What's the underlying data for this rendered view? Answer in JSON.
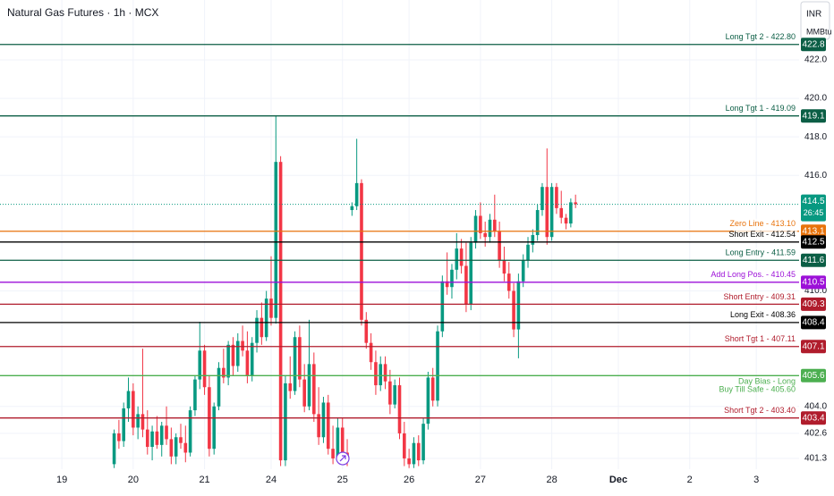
{
  "chart_data": {
    "type": "candlestick",
    "title": "Natural Gas Futures · 1h · MCX",
    "currency": "INR",
    "unit": "MMBtu",
    "up_color": "#089981",
    "down_color": "#f23645",
    "xlim": [
      0,
      168
    ],
    "ylim": [
      400.74,
      425.11
    ],
    "xticks": [
      {
        "value": 13,
        "label": "19"
      },
      {
        "value": 28,
        "label": "20"
      },
      {
        "value": 43,
        "label": "21"
      },
      {
        "value": 57,
        "label": "24"
      },
      {
        "value": 72,
        "label": "25"
      },
      {
        "value": 86,
        "label": "26"
      },
      {
        "value": 101,
        "label": "27"
      },
      {
        "value": 116,
        "label": "28"
      },
      {
        "value": 130,
        "label": "Dec"
      },
      {
        "value": 145,
        "label": "2"
      },
      {
        "value": 159,
        "label": "3"
      }
    ],
    "yticks": [
      {
        "value": 422,
        "label": "422.0"
      },
      {
        "value": 420,
        "label": "420.0"
      },
      {
        "value": 418,
        "label": "418.0"
      },
      {
        "value": 416,
        "label": "416.0"
      },
      {
        "value": 410,
        "label": "410.0"
      },
      {
        "value": 404,
        "label": "404.0"
      },
      402.6,
      401.3
    ],
    "grid": true,
    "x": [
      24,
      25,
      26,
      27,
      28,
      29,
      30,
      31,
      32,
      33,
      34,
      35,
      36,
      37,
      38,
      39,
      40,
      41,
      42,
      43,
      44,
      45,
      46,
      47,
      48,
      49,
      50,
      51,
      52,
      53,
      54,
      55,
      56,
      57,
      58,
      59,
      60,
      61,
      62,
      63,
      64,
      65,
      66,
      67,
      68,
      69,
      70,
      71,
      72,
      73,
      74,
      75,
      76,
      77,
      78,
      79,
      80,
      81,
      82,
      83,
      84,
      85,
      86,
      87,
      88,
      89,
      90,
      91,
      92,
      93,
      94,
      95,
      96,
      97,
      98,
      99,
      100,
      101,
      102,
      103,
      104,
      105,
      106,
      107,
      108,
      109,
      110,
      111,
      112,
      113,
      114,
      115,
      116,
      117,
      118,
      119,
      120,
      121
    ],
    "open": [
      401.0,
      402.6,
      402.2,
      403.9,
      404.8,
      402.9,
      403.6,
      402.8,
      401.9,
      402.7,
      402.0,
      403.0,
      402.3,
      401.4,
      402.4,
      402.1,
      401.6,
      403.8,
      405.4,
      406.9,
      405.0,
      401.8,
      404.0,
      406.0,
      405.5,
      407.2,
      406.1,
      407.4,
      406.9,
      405.6,
      407.3,
      408.6,
      407.6,
      409.6,
      408.6,
      416.7,
      401.2,
      405.2,
      404.8,
      407.6,
      405.4,
      404.0,
      406.2,
      403.6,
      402.4,
      404.2,
      401.8,
      401.3,
      402.9,
      401.6,
      414.2,
      414.4,
      415.6,
      408.5,
      407.3,
      406.3,
      405.1,
      406.2,
      405.3,
      404.1,
      405.1,
      402.6,
      401.3,
      401.0,
      402.1,
      401.2,
      403.1,
      405.5,
      404.3,
      407.9,
      410.5,
      410.2,
      411.1,
      412.2,
      411.3,
      409.3,
      412.5,
      413.9,
      413.0,
      412.8,
      413.7,
      413.1,
      411.6,
      410.9,
      410.0,
      408.0,
      410.5,
      411.6,
      412.4,
      412.9,
      414.2,
      415.4,
      412.8,
      415.4,
      414.3,
      413.8,
      413.5,
      414.6
    ],
    "high": [
      402.8,
      403.3,
      404.2,
      405.5,
      405.2,
      404.0,
      407.0,
      403.8,
      403.0,
      403.5,
      403.2,
      404.0,
      402.9,
      402.6,
      403.1,
      403.0,
      404.0,
      405.6,
      408.4,
      407.2,
      405.6,
      404.2,
      406.3,
      407.0,
      407.4,
      407.6,
      407.8,
      408.2,
      407.9,
      407.6,
      409.0,
      409.4,
      410.0,
      411.8,
      419.1,
      417.0,
      405.6,
      406.6,
      407.9,
      408.2,
      406.2,
      408.5,
      406.8,
      405.0,
      404.5,
      404.6,
      403.0,
      403.4,
      403.4,
      402.3,
      414.6,
      417.9,
      415.8,
      408.9,
      407.8,
      406.9,
      406.6,
      406.6,
      405.9,
      405.4,
      405.5,
      403.2,
      401.8,
      402.4,
      402.5,
      403.4,
      405.8,
      406.0,
      408.2,
      410.8,
      412.0,
      411.4,
      413.0,
      412.7,
      412.5,
      412.8,
      414.2,
      414.6,
      413.6,
      414.0,
      415.0,
      413.6,
      412.3,
      411.5,
      410.4,
      410.9,
      411.9,
      412.8,
      413.2,
      414.5,
      415.6,
      417.4,
      415.6,
      415.6,
      415.2,
      414.0,
      414.8,
      415.0
    ],
    "low": [
      400.8,
      401.8,
      401.9,
      403.2,
      402.5,
      402.3,
      402.4,
      401.5,
      401.2,
      401.8,
      401.4,
      402.0,
      401.0,
      401.0,
      401.8,
      401.1,
      401.4,
      403.5,
      404.9,
      404.6,
      401.4,
      401.5,
      403.8,
      405.2,
      405.1,
      405.6,
      405.8,
      406.6,
      405.2,
      405.3,
      406.8,
      407.2,
      407.4,
      408.2,
      408.3,
      400.9,
      400.9,
      404.4,
      404.6,
      405.0,
      403.7,
      403.8,
      403.2,
      402.0,
      402.1,
      401.5,
      401.0,
      401.1,
      401.2,
      400.9,
      413.9,
      414.2,
      408.2,
      407.0,
      405.9,
      404.6,
      404.8,
      404.9,
      403.6,
      403.9,
      402.3,
      400.9,
      400.8,
      400.8,
      400.9,
      401.0,
      402.8,
      404.0,
      404.0,
      407.6,
      409.8,
      409.6,
      410.6,
      410.9,
      408.9,
      409.0,
      412.2,
      412.7,
      412.3,
      412.5,
      412.8,
      411.2,
      410.5,
      409.6,
      407.6,
      406.5,
      410.2,
      411.2,
      412.0,
      412.6,
      413.9,
      412.4,
      412.6,
      414.0,
      413.5,
      413.2,
      413.3,
      414.3
    ],
    "close": [
      402.6,
      402.2,
      403.9,
      404.8,
      402.9,
      403.6,
      402.8,
      401.9,
      402.7,
      402.0,
      403.0,
      402.3,
      401.4,
      402.4,
      402.1,
      401.6,
      403.8,
      405.4,
      406.9,
      405.0,
      401.8,
      404.0,
      406.0,
      405.5,
      407.2,
      406.1,
      407.4,
      406.9,
      405.6,
      407.3,
      408.6,
      407.6,
      409.6,
      408.6,
      416.7,
      401.2,
      405.2,
      404.8,
      407.6,
      405.4,
      404.0,
      406.2,
      403.6,
      402.4,
      404.2,
      401.8,
      401.3,
      402.9,
      401.6,
      401.4,
      414.4,
      415.6,
      408.5,
      407.3,
      406.3,
      405.1,
      406.2,
      405.3,
      404.1,
      405.1,
      402.6,
      401.3,
      401.0,
      402.1,
      401.2,
      403.1,
      405.5,
      404.3,
      407.9,
      410.5,
      410.2,
      411.1,
      412.2,
      411.3,
      409.3,
      412.5,
      413.9,
      413.0,
      412.8,
      413.7,
      413.1,
      411.6,
      410.9,
      410.0,
      408.0,
      410.5,
      411.6,
      412.4,
      412.9,
      414.2,
      415.4,
      412.8,
      415.4,
      414.3,
      413.8,
      413.5,
      414.6,
      414.5
    ],
    "last_price": 414.5,
    "countdown": "26:45",
    "last_color": "#089981",
    "levels": [
      {
        "label": "Long Tgt 2 - 422.80",
        "value": 422.8,
        "value_label": "422.8",
        "color": "#0b5e45"
      },
      {
        "label": "Long Tgt 1 - 419.09",
        "value": 419.09,
        "value_label": "419.1",
        "color": "#0b5e45"
      },
      {
        "label": "Zero Line - 413.10",
        "value": 413.1,
        "value_label": "413.1",
        "color": "#e8730c"
      },
      {
        "label": "Short Exit - 412.54",
        "value": 412.54,
        "value_label": "412.5",
        "color": "#000000"
      },
      {
        "label": "Long Entry - 411.59",
        "value": 411.59,
        "value_label": "411.6",
        "color": "#0b5e45"
      },
      {
        "label": "Add Long Pos. - 410.45",
        "value": 410.45,
        "value_label": "410.5",
        "color": "#9c10d8"
      },
      {
        "label": "Short Entry - 409.31",
        "value": 409.31,
        "value_label": "409.3",
        "color": "#b01c2c"
      },
      {
        "label": "Long Exit - 408.36",
        "value": 408.36,
        "value_label": "408.4",
        "color": "#000000"
      },
      {
        "label": "Short Tgt 1 - 407.11",
        "value": 407.11,
        "value_label": "407.1",
        "color": "#b01c2c"
      },
      {
        "label": "Day Bias - Long",
        "label2": "Buy Till Safe - 405.60",
        "value": 405.6,
        "value_label": "405.6",
        "color": "#4caf50"
      },
      {
        "label": "Short Tgt 2 - 403.40",
        "value": 403.4,
        "value_label": "403.4",
        "color": "#b01c2c"
      }
    ]
  }
}
